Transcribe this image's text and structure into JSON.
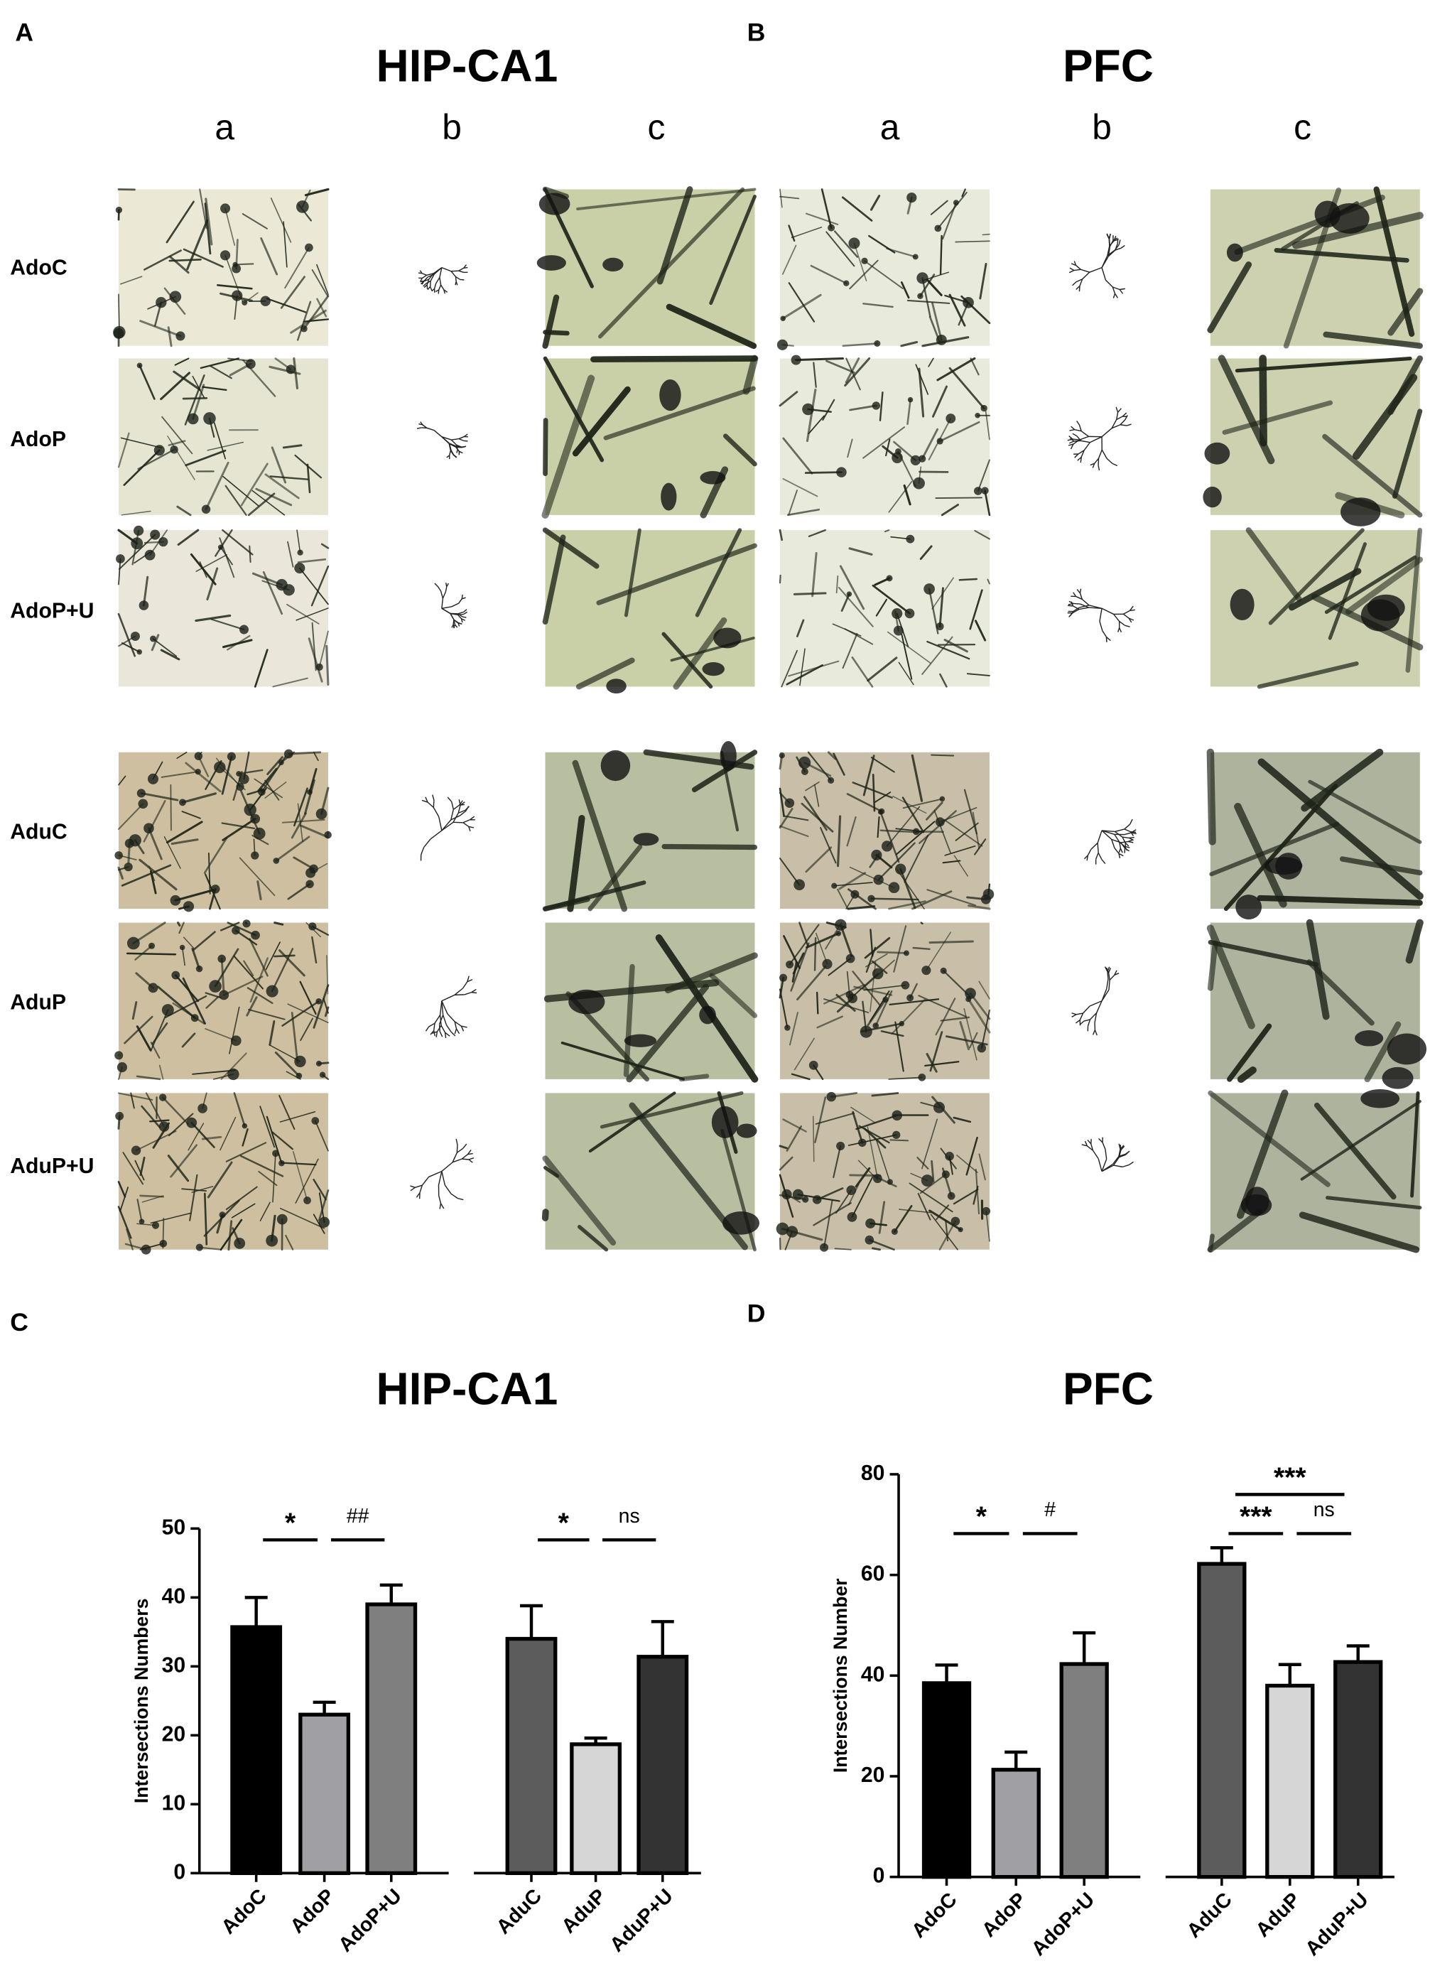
{
  "panel_labels": [
    "A",
    "B",
    "C",
    "D"
  ],
  "image_panels": [
    {
      "title": "HIP-CA1",
      "columns": [
        "a",
        "b",
        "c"
      ]
    },
    {
      "title": "PFC",
      "columns": [
        "a",
        "b",
        "c"
      ]
    }
  ],
  "row_labels": [
    "AdoC",
    "AdoP",
    "AdoP+U",
    "AduC",
    "AduP",
    "AduP+U"
  ],
  "chart_data": [
    {
      "type": "bar",
      "title": "HIP-CA1",
      "y_label": "Intersections Numbers",
      "categories": [
        "AdoC",
        "AdoP",
        "AdoP+U",
        "AduC",
        "AduP",
        "AduP+U"
      ],
      "values": [
        35.7,
        23,
        39,
        34,
        18.7,
        31.4
      ],
      "errors": [
        4.3,
        1.8,
        2.8,
        4.8,
        0.9,
        5.1
      ],
      "colors": [
        "#000000",
        "#a0a0a4",
        "#7f7f7f",
        "#5c5c5c",
        "#d6d6d6",
        "#333333"
      ],
      "ylim": [
        0,
        50
      ],
      "yticks": [
        0,
        10,
        20,
        30,
        40,
        50
      ],
      "annotations": [
        "*",
        "##",
        "*",
        "ns"
      ]
    },
    {
      "type": "bar",
      "title": "PFC",
      "y_label": "Intersections Number",
      "categories": [
        "AdoC",
        "AdoP",
        "AdoP+U",
        "AduC",
        "AduP",
        "AduP+U"
      ],
      "values": [
        38.5,
        21.3,
        42.3,
        62.2,
        38,
        42.7
      ],
      "errors": [
        3.6,
        3.5,
        6.2,
        3.2,
        4.2,
        3.2
      ],
      "colors": [
        "#000000",
        "#a0a0a4",
        "#7f7f7f",
        "#5c5c5c",
        "#d6d6d6",
        "#333333"
      ],
      "ylim": [
        0,
        80
      ],
      "yticks": [
        0,
        20,
        40,
        60,
        80
      ],
      "annotations": [
        "*",
        "#",
        "***",
        "ns",
        "***"
      ]
    }
  ]
}
